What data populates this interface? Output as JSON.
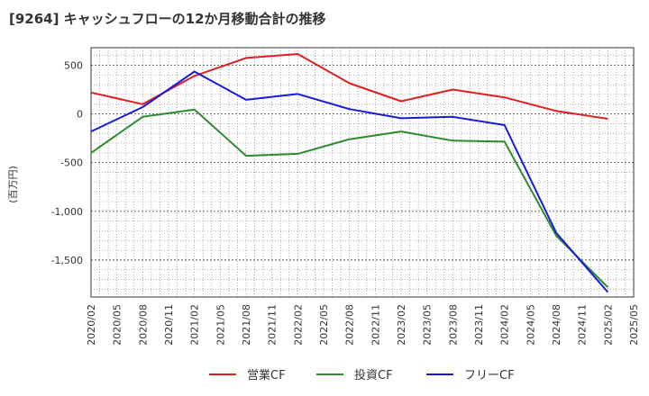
{
  "chart_data": {
    "type": "line",
    "title": "[9264]  キャッシュフローの12か月移動合計の推移",
    "ylabel": "(百万円)",
    "xlabel": "",
    "ylim": [
      -1880,
      680
    ],
    "yticks": [
      500,
      0,
      -500,
      -1000,
      -1500
    ],
    "ytick_labels": [
      "500",
      "0",
      "-500",
      "-1,000",
      "-1,500"
    ],
    "x": [
      "2020/02",
      "2020/05",
      "2020/08",
      "2020/11",
      "2021/02",
      "2021/05",
      "2021/08",
      "2021/11",
      "2022/02",
      "2022/05",
      "2022/08",
      "2022/11",
      "2023/02",
      "2023/05",
      "2023/08",
      "2023/11",
      "2024/02",
      "2024/05",
      "2024/08",
      "2024/11",
      "2025/02",
      "2025/05"
    ],
    "grid": true,
    "legend_position": "bottom",
    "series": [
      {
        "name": "営業CF",
        "color": "#e02020",
        "values": [
          220,
          null,
          100,
          null,
          390,
          null,
          575,
          null,
          615,
          null,
          315,
          null,
          130,
          null,
          250,
          null,
          170,
          null,
          30,
          null,
          -50,
          null
        ]
      },
      {
        "name": "投資CF",
        "color": "#2e8b2e",
        "values": [
          -400,
          null,
          -30,
          null,
          45,
          null,
          -430,
          null,
          -410,
          null,
          -260,
          null,
          -180,
          null,
          -275,
          null,
          -285,
          null,
          -1250,
          null,
          -1780,
          null
        ]
      },
      {
        "name": "フリーCF",
        "color": "#1a1adb",
        "values": [
          -180,
          null,
          70,
          null,
          435,
          null,
          145,
          null,
          205,
          null,
          50,
          null,
          -45,
          null,
          -30,
          null,
          -115,
          null,
          -1220,
          null,
          -1830,
          null
        ]
      }
    ]
  }
}
